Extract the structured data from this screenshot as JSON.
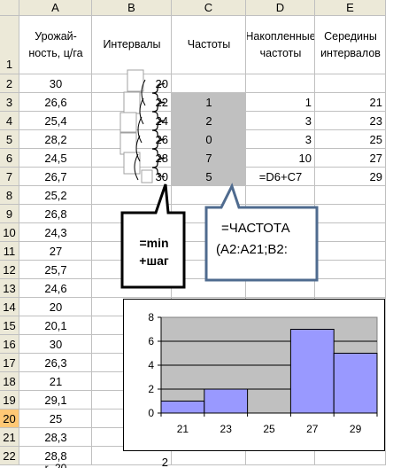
{
  "columns": [
    "A",
    "B",
    "C",
    "D",
    "E"
  ],
  "rows": [
    "1",
    "2",
    "3",
    "4",
    "5",
    "6",
    "7",
    "8",
    "9",
    "10",
    "11",
    "12",
    "13",
    "14",
    "15",
    "16",
    "17",
    "18",
    "19",
    "20",
    "21",
    "22"
  ],
  "selected_row": "20",
  "headers": {
    "a1": "Урожай-ность, ц/га",
    "b1": "Интервалы",
    "c1": "Частоты",
    "d1": "Накопленные частоты",
    "e1": "Середины интервалов"
  },
  "col_a": [
    "30",
    "26,6",
    "25,4",
    "28,2",
    "24,5",
    "26,7",
    "25,2",
    "26,8",
    "24,3",
    "27",
    "25,7",
    "24,6",
    "20",
    "20,1",
    "30",
    "26,3",
    "21",
    "29,1",
    "25",
    "28,3",
    "28,8"
  ],
  "col_b": [
    "20",
    "22",
    "24",
    "26",
    "28",
    "30"
  ],
  "col_c": [
    "",
    "1",
    "2",
    "0",
    "7",
    "5"
  ],
  "col_d": [
    "",
    "1",
    "3",
    "3",
    "10",
    "=D6+C7"
  ],
  "col_e": [
    "",
    "21",
    "23",
    "25",
    "27",
    "29"
  ],
  "row22_b": "2",
  "callout_min": {
    "line1": "=min",
    "line2": "+шаг"
  },
  "callout_freq": {
    "line1": "=ЧАСТОТА",
    "line2": "(A2:A21;B2:"
  },
  "colors": {
    "chart_fill": "#9999ff",
    "plot_bg": "#c0c0c0",
    "callout_blue": "#4f6b8f"
  },
  "chart_data": {
    "type": "bar",
    "categories": [
      "21",
      "23",
      "25",
      "27",
      "29"
    ],
    "values": [
      1,
      2,
      0,
      7,
      5
    ],
    "ylim": [
      0,
      8
    ],
    "yticks": [
      "0",
      "2",
      "4",
      "6",
      "8"
    ],
    "grid": true
  }
}
